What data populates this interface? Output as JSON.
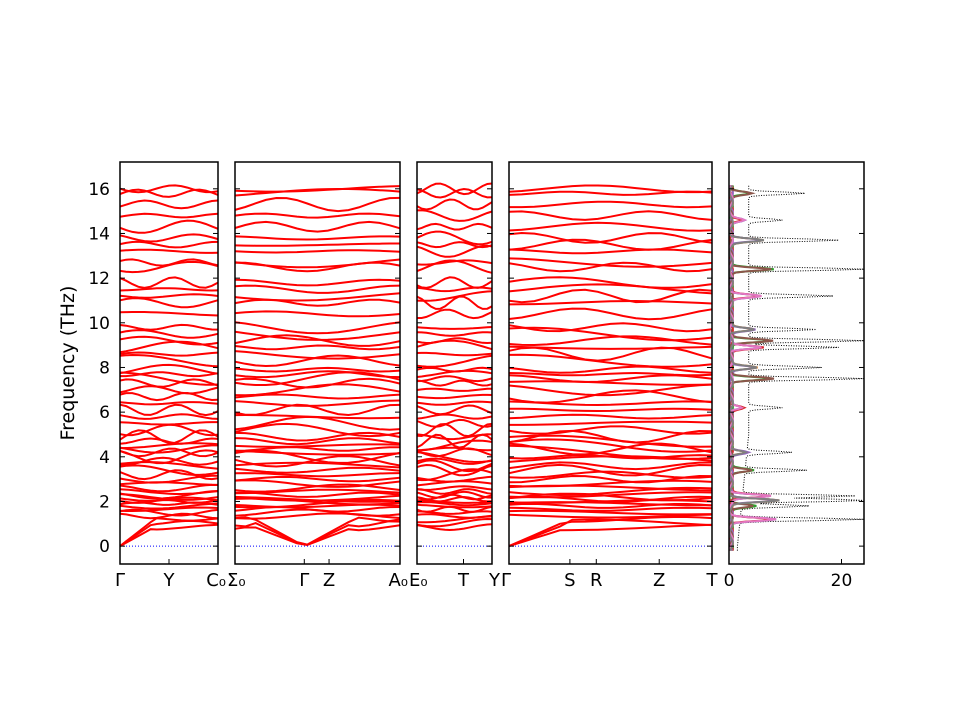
{
  "chart_data": [
    {
      "type": "line",
      "title": "",
      "ylabel": "Frequency (THz)",
      "ylim": [
        -0.8,
        17.2
      ],
      "y_ticks": [
        "0",
        "2",
        "4",
        "6",
        "8",
        "10",
        "12",
        "14",
        "16"
      ],
      "line_color": "#ff0000",
      "zero_line_color": "#0000ff",
      "segments": [
        {
          "name": "",
          "x_ticks": [
            "Γ",
            "Y",
            "C₀"
          ],
          "x": [
            0,
            0.5,
            1
          ]
        },
        {
          "name": "",
          "x_ticks": [
            "Σ₀",
            "Γ",
            "Z",
            "A₀"
          ],
          "x": [
            0,
            0.42,
            0.57,
            1
          ]
        },
        {
          "name": "",
          "x_ticks": [
            "E₀",
            "T",
            "Y"
          ],
          "x": [
            0,
            0.62,
            1
          ]
        },
        {
          "name": "",
          "x_ticks": [
            "Γ",
            "S",
            "R",
            "Z",
            "T"
          ],
          "x": [
            0,
            0.3,
            0.43,
            0.74,
            1
          ]
        }
      ],
      "band_frequencies_thz": [
        0.85,
        1.05,
        1.2,
        1.35,
        1.5,
        1.65,
        1.8,
        1.9,
        2.0,
        2.1,
        2.2,
        2.3,
        2.45,
        2.6,
        2.8,
        3.0,
        3.2,
        3.4,
        3.6,
        3.8,
        4.0,
        4.2,
        4.35,
        4.5,
        4.7,
        4.9,
        5.2,
        5.5,
        5.8,
        6.1,
        6.4,
        6.7,
        7.0,
        7.3,
        7.5,
        7.7,
        7.9,
        8.3,
        8.6,
        8.9,
        9.2,
        9.5,
        9.8,
        10.4,
        10.9,
        11.2,
        11.5,
        11.8,
        12.5,
        12.7,
        13.2,
        13.5,
        13.8,
        14.3,
        14.8,
        15.3,
        15.8,
        16.0
      ]
    },
    {
      "type": "line",
      "title": "",
      "xlabel": "",
      "x_ticks": [
        "0",
        "20"
      ],
      "xlim": [
        0,
        24
      ],
      "ylim": [
        -0.8,
        17.2
      ],
      "description_series": "projected DOS (colored) and total DOS (dotted black)",
      "series": [
        {
          "name": "",
          "color": "#1f77b4"
        },
        {
          "name": "",
          "color": "#ff7f0e"
        },
        {
          "name": "",
          "color": "#2ca02c"
        },
        {
          "name": "",
          "color": "#d62728"
        },
        {
          "name": "",
          "color": "#9467bd"
        },
        {
          "name": "",
          "color": "#8c564b"
        },
        {
          "name": "",
          "color": "#e377c2"
        },
        {
          "name": "",
          "color": "#7f7f7f"
        },
        {
          "name": "",
          "color": "#000000",
          "style": "dotted"
        }
      ],
      "total_dos_peaks": [
        {
          "f": 1.2,
          "v": 22
        },
        {
          "f": 1.8,
          "v": 12
        },
        {
          "f": 2.05,
          "v": 24
        },
        {
          "f": 2.25,
          "v": 20
        },
        {
          "f": 3.4,
          "v": 11
        },
        {
          "f": 4.2,
          "v": 8
        },
        {
          "f": 6.2,
          "v": 6
        },
        {
          "f": 7.5,
          "v": 21
        },
        {
          "f": 8.0,
          "v": 13
        },
        {
          "f": 8.9,
          "v": 16
        },
        {
          "f": 9.2,
          "v": 21
        },
        {
          "f": 9.7,
          "v": 12
        },
        {
          "f": 11.2,
          "v": 15
        },
        {
          "f": 12.4,
          "v": 21
        },
        {
          "f": 13.7,
          "v": 16
        },
        {
          "f": 14.6,
          "v": 6
        },
        {
          "f": 15.8,
          "v": 10
        }
      ]
    }
  ]
}
